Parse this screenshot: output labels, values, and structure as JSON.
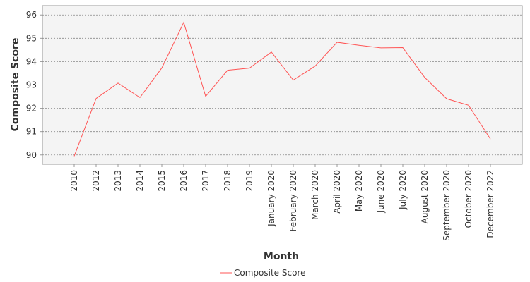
{
  "chart_data": {
    "type": "line",
    "title": "",
    "xlabel": "Month",
    "ylabel": "Composite Score",
    "categories": [
      "2010",
      "2012",
      "2013",
      "2014",
      "2015",
      "2016",
      "2017",
      "2018",
      "2019",
      "January 2020",
      "February 2020",
      "March 2020",
      "April 2020",
      "May 2020",
      "June 2020",
      "July 2020",
      "August 2020",
      "September 2020",
      "October 2020",
      "December 2022"
    ],
    "series": [
      {
        "name": "Composite Score",
        "color": "#ff5555",
        "values": [
          89.95,
          92.42,
          93.08,
          92.46,
          93.73,
          95.68,
          92.51,
          93.63,
          93.72,
          94.41,
          93.21,
          93.81,
          94.83,
          94.7,
          94.59,
          94.6,
          93.32,
          92.41,
          92.13,
          90.68
        ]
      }
    ],
    "yticks": [
      90,
      91,
      92,
      93,
      94,
      95,
      96
    ],
    "ylim": [
      89.6,
      96.4
    ],
    "grid": true,
    "legend": "bottom-center"
  }
}
